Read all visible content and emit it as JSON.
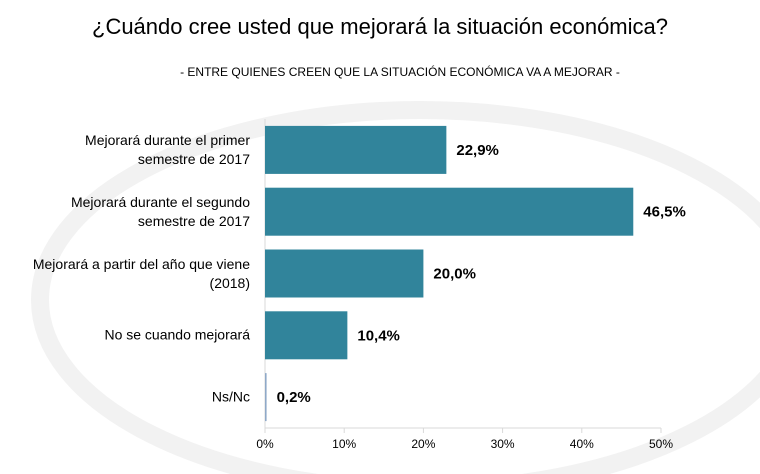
{
  "chart_data": {
    "type": "barh",
    "title": "¿Cuándo cree usted que mejorará la situación económica?",
    "subtitle": "- ENTRE QUIENES CREEN QUE LA SITUACIÓN ECONÓMICA VA A MEJORAR -",
    "categories": [
      "Mejorará durante el primer semestre de 2017",
      "Mejorará durante el segundo semestre de 2017",
      "Mejorará a partir del año que viene (2018)",
      "No se cuando mejorará",
      "Ns/Nc"
    ],
    "values": [
      22.9,
      46.5,
      20.0,
      10.4,
      0.2
    ],
    "value_labels": [
      "22,9%",
      "46,5%",
      "20,0%",
      "10,4%",
      "0,2%"
    ],
    "color": "#31849b",
    "xlim": [
      0,
      50
    ],
    "xticks": [
      {
        "value": 0,
        "label": "0%"
      },
      {
        "value": 10,
        "label": "10%"
      },
      {
        "value": 20,
        "label": "20%"
      },
      {
        "value": 30,
        "label": "30%"
      },
      {
        "value": 40,
        "label": "40%"
      },
      {
        "value": 50,
        "label": "50%"
      }
    ]
  }
}
